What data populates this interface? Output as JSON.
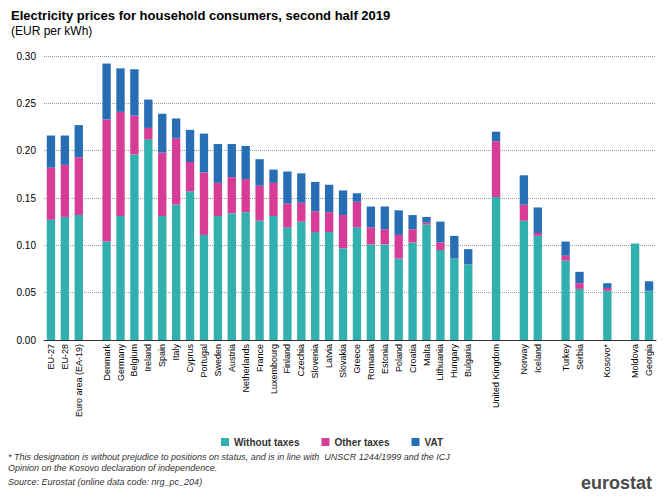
{
  "chart_data": {
    "type": "bar",
    "title": "Electricity prices for household consumers, second half 2019",
    "subtitle": "(EUR per kWh)",
    "categories": [
      "EU-27",
      "EU-28",
      "Euro area (EA-19)",
      null,
      "Denmark",
      "Germany",
      "Belgium",
      "Ireland",
      "Spain",
      "Italy",
      "Cyprus",
      "Portugal",
      "Sweden",
      "Austria",
      "Netherlands",
      "France",
      "Luxembourg",
      "Finland",
      "Czechia",
      "Slovenia",
      "Latvia",
      "Slovakia",
      "Greece",
      "Romania",
      "Estonia",
      "Poland",
      "Croatia",
      "Malta",
      "Lithuania",
      "Hungary",
      "Bulgaria",
      null,
      "United Kingdom",
      null,
      "Norway",
      "Iceland",
      null,
      "Turkey",
      "Serbia",
      null,
      "Kosovo*",
      null,
      "Moldova",
      "Georgia"
    ],
    "series": [
      {
        "name": "Without taxes",
        "color": "#32afaf",
        "values": [
          0.127,
          0.13,
          0.132,
          null,
          0.104,
          0.131,
          0.196,
          0.212,
          0.131,
          0.143,
          0.157,
          0.111,
          0.131,
          0.134,
          0.135,
          0.126,
          0.131,
          0.119,
          0.125,
          0.114,
          0.114,
          0.097,
          0.119,
          0.101,
          0.101,
          0.086,
          0.103,
          0.122,
          0.095,
          0.086,
          0.08,
          null,
          0.151,
          null,
          0.126,
          0.11,
          null,
          0.084,
          0.054,
          null,
          0.052,
          null,
          0.102,
          0.052
        ]
      },
      {
        "name": "Other taxes",
        "color": "#d73c96",
        "values": [
          0.055,
          0.055,
          0.061,
          null,
          0.129,
          0.11,
          0.041,
          0.012,
          0.067,
          0.07,
          0.031,
          0.066,
          0.035,
          0.038,
          0.035,
          0.037,
          0.035,
          0.025,
          0.02,
          0.022,
          0.021,
          0.035,
          0.027,
          0.018,
          0.016,
          0.025,
          0.014,
          0.002,
          0.008,
          0,
          0,
          null,
          0.059,
          null,
          0.017,
          0.003,
          null,
          0.005,
          0.006,
          null,
          0.003,
          null,
          0,
          0
        ]
      },
      {
        "name": "VAT",
        "color": "#286eb4",
        "values": [
          0.034,
          0.031,
          0.034,
          null,
          0.059,
          0.046,
          0.049,
          0.03,
          0.041,
          0.021,
          0.034,
          0.041,
          0.041,
          0.035,
          0.035,
          0.028,
          0.014,
          0.034,
          0.031,
          0.031,
          0.029,
          0.026,
          0.009,
          0.022,
          0.024,
          0.026,
          0.015,
          0.006,
          0.022,
          0.024,
          0.016,
          null,
          0.01,
          null,
          0.031,
          0.027,
          null,
          0.015,
          0.012,
          null,
          0.005,
          null,
          0,
          0.01
        ]
      }
    ],
    "ylim": [
      0,
      0.3
    ],
    "yticks": [
      {
        "value": 0,
        "label": "0.00"
      },
      {
        "value": 0.05,
        "label": "0.05"
      },
      {
        "value": 0.1,
        "label": "0.10"
      },
      {
        "value": 0.15,
        "label": "0.15"
      },
      {
        "value": 0.2,
        "label": "0.20"
      },
      {
        "value": 0.25,
        "label": "0.25"
      },
      {
        "value": 0.3,
        "label": "0.30"
      }
    ],
    "grid": true,
    "stacked": true,
    "legend": "bottom",
    "annotations": [
      "* This designation is without prejudice to positions on status, and is in line with  UNSCR 1244/1999 and the ICJ",
      "Opinion on the Kosovo declaration of independence.",
      "Source: Eurostat (online data code: nrg_pc_204)",
      "eurostat"
    ]
  }
}
